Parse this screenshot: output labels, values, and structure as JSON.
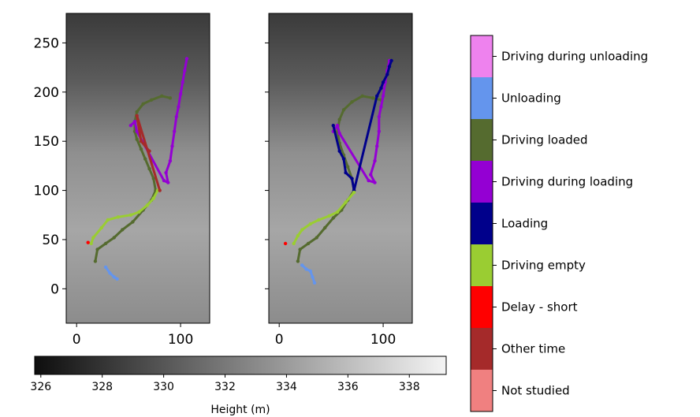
{
  "chart_data": [
    {
      "type": "scatter",
      "panel": "left map",
      "xlim": [
        -10,
        128
      ],
      "ylim": [
        -35,
        280
      ],
      "x_ticks": [
        "0",
        "100"
      ],
      "y_ticks": [
        "0",
        "50",
        "100",
        "150",
        "200",
        "250"
      ],
      "x_tick_values": [
        0,
        100
      ],
      "y_tick_values": [
        0,
        50,
        100,
        150,
        200,
        250
      ],
      "series": [
        {
          "category": "Unloading",
          "color": "#6495ED",
          "points": [
            [
              28,
              22
            ],
            [
              32,
              16
            ],
            [
              36,
              12
            ],
            [
              39,
              10
            ]
          ]
        },
        {
          "category": "Driving loaded",
          "color": "#556B2F",
          "points": [
            [
              18,
              28
            ],
            [
              20,
              40
            ],
            [
              28,
              46
            ],
            [
              36,
              52
            ],
            [
              44,
              60
            ],
            [
              54,
              68
            ],
            [
              64,
              80
            ],
            [
              72,
              90
            ],
            [
              76,
              100
            ],
            [
              74,
              112
            ],
            [
              70,
              122
            ],
            [
              66,
              132
            ],
            [
              62,
              142
            ],
            [
              58,
              152
            ],
            [
              56,
              160
            ],
            [
              56,
              170
            ],
            [
              58,
              180
            ],
            [
              64,
              188
            ],
            [
              72,
              192
            ],
            [
              82,
              196
            ],
            [
              90,
              194
            ]
          ]
        },
        {
          "category": "Driving during loading",
          "color": "#9400D3",
          "points": [
            [
              52,
              166
            ],
            [
              56,
              170
            ],
            [
              58,
              160
            ],
            [
              84,
              110
            ],
            [
              88,
              108
            ],
            [
              86,
              118
            ],
            [
              90,
              130
            ],
            [
              92,
              145
            ],
            [
              94,
              160
            ],
            [
              96,
              175
            ],
            [
              98,
              185
            ],
            [
              100,
              198
            ],
            [
              102,
              210
            ],
            [
              104,
              222
            ],
            [
              106,
              234
            ]
          ]
        },
        {
          "category": "Driving empty",
          "color": "#9ACD32",
          "points": [
            [
              14,
              46
            ],
            [
              16,
              52
            ],
            [
              24,
              62
            ],
            [
              30,
              70
            ],
            [
              40,
              73
            ],
            [
              52,
              75
            ],
            [
              60,
              78
            ],
            [
              68,
              85
            ],
            [
              74,
              92
            ],
            [
              78,
              100
            ]
          ]
        },
        {
          "category": "Delay - short",
          "color": "#FF0000",
          "points": [
            [
              11,
              47
            ]
          ]
        },
        {
          "category": "Other time",
          "color": "#A52A2A",
          "points": [
            [
              70,
              140
            ],
            [
              62,
              150
            ],
            [
              58,
              176
            ],
            [
              80,
              100
            ]
          ]
        }
      ]
    },
    {
      "type": "scatter",
      "panel": "right map",
      "xlim": [
        -10,
        128
      ],
      "ylim": [
        -35,
        280
      ],
      "x_ticks": [
        "0",
        "100"
      ],
      "x_tick_values": [
        0,
        100
      ],
      "series": [
        {
          "category": "Unloading",
          "color": "#6495ED",
          "points": [
            [
              22,
              24
            ],
            [
              26,
              20
            ],
            [
              30,
              18
            ],
            [
              32,
              12
            ],
            [
              34,
              6
            ]
          ]
        },
        {
          "category": "Driving loaded",
          "color": "#556B2F",
          "points": [
            [
              18,
              28
            ],
            [
              20,
              40
            ],
            [
              28,
              46
            ],
            [
              36,
              52
            ],
            [
              44,
              62
            ],
            [
              52,
              72
            ],
            [
              60,
              80
            ],
            [
              66,
              90
            ],
            [
              72,
              100
            ],
            [
              70,
              112
            ],
            [
              66,
              124
            ],
            [
              62,
              136
            ],
            [
              58,
              148
            ],
            [
              56,
              160
            ],
            [
              58,
              172
            ],
            [
              62,
              182
            ],
            [
              70,
              190
            ],
            [
              80,
              196
            ],
            [
              90,
              194
            ],
            [
              98,
              192
            ]
          ]
        },
        {
          "category": "Driving during loading",
          "color": "#9400D3",
          "points": [
            [
              52,
              160
            ],
            [
              56,
              166
            ],
            [
              58,
              158
            ],
            [
              86,
              110
            ],
            [
              92,
              108
            ],
            [
              88,
              116
            ],
            [
              92,
              130
            ],
            [
              94,
              145
            ],
            [
              96,
              160
            ],
            [
              96,
              175
            ],
            [
              98,
              185
            ],
            [
              100,
              196
            ],
            [
              102,
              210
            ],
            [
              104,
              222
            ],
            [
              106,
              232
            ]
          ]
        },
        {
          "category": "Loading",
          "color": "#00008B",
          "points": [
            [
              52,
              166
            ],
            [
              58,
              140
            ],
            [
              62,
              132
            ],
            [
              64,
              118
            ],
            [
              70,
              112
            ],
            [
              72,
              100
            ],
            [
              94,
              196
            ],
            [
              98,
              204
            ],
            [
              100,
              210
            ],
            [
              104,
              218
            ],
            [
              106,
              226
            ],
            [
              108,
              232
            ]
          ]
        },
        {
          "category": "Driving empty",
          "color": "#9ACD32",
          "points": [
            [
              14,
              46
            ],
            [
              18,
              54
            ],
            [
              22,
              60
            ],
            [
              30,
              66
            ],
            [
              38,
              70
            ],
            [
              48,
              74
            ],
            [
              56,
              78
            ],
            [
              64,
              88
            ],
            [
              72,
              98
            ]
          ]
        },
        {
          "category": "Delay - short",
          "color": "#FF0000",
          "points": [
            [
              6,
              46
            ]
          ]
        }
      ]
    },
    {
      "type": "heatmap",
      "colormap": "gray",
      "label": "Height (m)",
      "range": [
        325.8,
        339.2
      ],
      "ticks": [
        "326",
        "328",
        "330",
        "332",
        "334",
        "336",
        "338"
      ],
      "tick_values": [
        326,
        328,
        330,
        332,
        334,
        336,
        338
      ]
    },
    {
      "type": "legend",
      "categories": [
        {
          "label": "Driving during unloading",
          "color": "#EE82EE"
        },
        {
          "label": "Unloading",
          "color": "#6495ED"
        },
        {
          "label": "Driving loaded",
          "color": "#556B2F"
        },
        {
          "label": "Driving during loading",
          "color": "#9400D3"
        },
        {
          "label": "Loading",
          "color": "#00008B"
        },
        {
          "label": "Driving empty",
          "color": "#9ACD32"
        },
        {
          "label": "Delay - short",
          "color": "#FF0000"
        },
        {
          "label": "Other time",
          "color": "#A52A2A"
        },
        {
          "label": "Not studied",
          "color": "#F08080"
        }
      ]
    }
  ]
}
